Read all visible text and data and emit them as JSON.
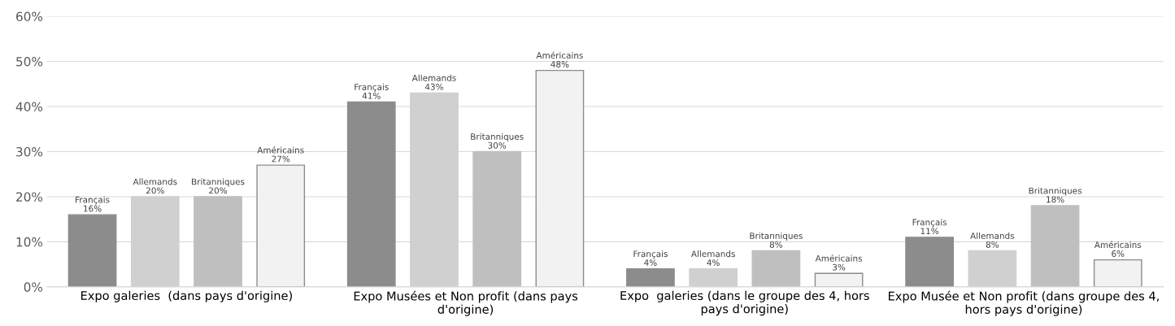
{
  "chart_data": {
    "type": "bar",
    "categories": [
      "Expo galeries  (dans pays d'origine)",
      "Expo Musées et Non profit (dans pays d'origine)",
      "Expo  galeries (dans le groupe des 4, hors pays d'origine)",
      "Expo Musée et Non profit (dans groupe des 4, hors pays d'origine)"
    ],
    "series": [
      {
        "name": "Français",
        "color": "#8c8c8c",
        "values": [
          16,
          41,
          4,
          11
        ],
        "value_labels": [
          "16%",
          "41%",
          "4%",
          "11%"
        ]
      },
      {
        "name": "Allemands",
        "color": "#d0d0d0",
        "values": [
          20,
          43,
          4,
          8
        ],
        "value_labels": [
          "20%",
          "43%",
          "4%",
          "8%"
        ]
      },
      {
        "name": "Britanniques",
        "color": "#bfbfbf",
        "values": [
          20,
          30,
          8,
          18
        ],
        "value_labels": [
          "20%",
          "30%",
          "8%",
          "18%"
        ]
      },
      {
        "name": "Américains",
        "color": "#f2f2f2",
        "values": [
          27,
          48,
          3,
          6
        ],
        "value_labels": [
          "27%",
          "48%",
          "3%",
          "6%"
        ]
      }
    ],
    "ylim": [
      0,
      60
    ],
    "yticks": [
      {
        "value": 0,
        "label": "0%"
      },
      {
        "value": 10,
        "label": "10%"
      },
      {
        "value": 20,
        "label": "20%"
      },
      {
        "value": 30,
        "label": "30%"
      },
      {
        "value": 40,
        "label": "40%"
      },
      {
        "value": 50,
        "label": "50%"
      },
      {
        "value": 60,
        "label": "60%"
      }
    ],
    "grid": "y",
    "legend": false
  }
}
